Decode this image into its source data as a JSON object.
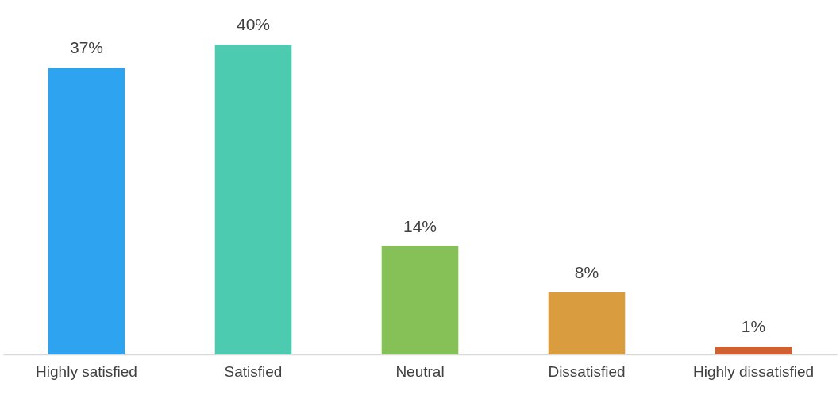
{
  "chart_data": {
    "type": "bar",
    "categories": [
      "Highly satisfied",
      "Satisfied",
      "Neutral",
      "Dissatisfied",
      "Highly dissatisfied"
    ],
    "values": [
      37,
      40,
      14,
      8,
      1
    ],
    "colors": [
      "#2ea3ef",
      "#4ccbb0",
      "#86c157",
      "#d99d3f",
      "#d1602f"
    ],
    "value_labels": [
      "37%",
      "40%",
      "14%",
      "8%",
      "1%"
    ]
  }
}
